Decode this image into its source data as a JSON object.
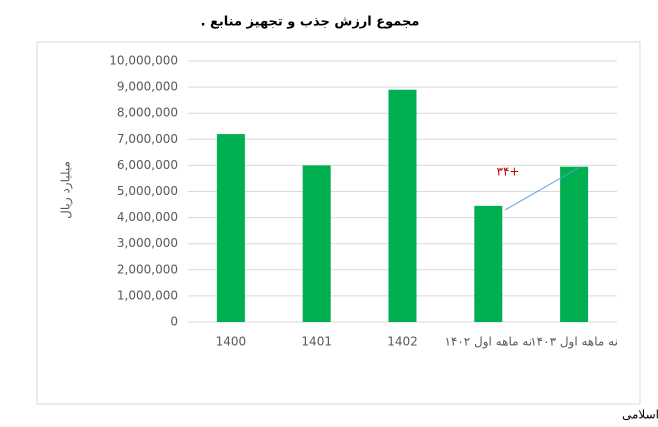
{
  "chart_data": {
    "type": "bar",
    "title": "مجموع ارزش جذب و تجهیز منابع .",
    "y_label": "میلیارد ریال",
    "categories": [
      "1400",
      "1401",
      "1402",
      "نه ماهه اول ۱۴۰۲",
      "نه ماهه اول ۱۴۰۳"
    ],
    "values": [
      7200000,
      6000000,
      8900000,
      4450000,
      5950000
    ],
    "color": "#00b050",
    "ylim": [
      0,
      10000000
    ],
    "yticks": [
      0,
      {
        "value": 1000000,
        "label": "1,000,000"
      },
      {
        "value": 2000000,
        "label": "2,000,000"
      },
      {
        "value": 3000000,
        "label": "3,000,000"
      },
      {
        "value": 4000000,
        "label": "4,000,000"
      },
      {
        "value": 5000000,
        "label": "5,000,000"
      },
      {
        "value": 6000000,
        "label": "6,000,000"
      },
      {
        "value": 7000000,
        "label": "7,000,000"
      },
      {
        "value": 8000000,
        "label": "8,000,000"
      },
      {
        "value": 9000000,
        "label": "9,000,000"
      },
      {
        "value": 10000000,
        "label": "10,000,000"
      }
    ],
    "grid": true,
    "annotation": "۳۴+",
    "source": "مأخذ: گزارش وضعیت بازار سرمایه، مرکز پژوهش،توسعه و مطالعات اسلامی"
  }
}
